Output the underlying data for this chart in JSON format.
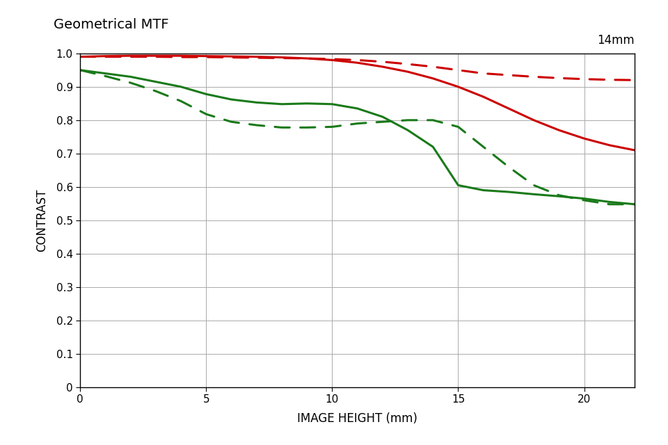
{
  "title": "Geometrical MTF",
  "focal_length_label": "14mm",
  "xlabel": "IMAGE HEIGHT (mm)",
  "ylabel": "CONTRAST",
  "xlim": [
    0,
    22
  ],
  "ylim": [
    0,
    1.0
  ],
  "xticks": [
    0,
    5,
    10,
    15,
    20
  ],
  "yticks": [
    0,
    0.1,
    0.2,
    0.3,
    0.4,
    0.5,
    0.6,
    0.7,
    0.8,
    0.9,
    1
  ],
  "background_color": "#ffffff",
  "curves": [
    {
      "name": "red_solid",
      "color": "#cc0000",
      "linestyle": "solid",
      "linewidth": 2.2,
      "x": [
        0,
        1,
        2,
        3,
        4,
        5,
        6,
        7,
        8,
        9,
        10,
        11,
        12,
        13,
        14,
        15,
        16,
        17,
        18,
        19,
        20,
        21,
        22
      ],
      "y": [
        0.99,
        0.992,
        0.993,
        0.993,
        0.993,
        0.992,
        0.991,
        0.99,
        0.988,
        0.985,
        0.98,
        0.972,
        0.96,
        0.945,
        0.925,
        0.9,
        0.87,
        0.835,
        0.8,
        0.77,
        0.745,
        0.725,
        0.71
      ]
    },
    {
      "name": "red_dashed",
      "color": "#cc0000",
      "linestyle": "dashed",
      "linewidth": 2.2,
      "x": [
        0,
        1,
        2,
        3,
        4,
        5,
        6,
        7,
        8,
        9,
        10,
        11,
        12,
        13,
        14,
        15,
        16,
        17,
        18,
        19,
        20,
        21,
        22
      ],
      "y": [
        0.99,
        0.99,
        0.99,
        0.99,
        0.989,
        0.989,
        0.988,
        0.987,
        0.986,
        0.985,
        0.983,
        0.98,
        0.975,
        0.968,
        0.96,
        0.95,
        0.94,
        0.935,
        0.93,
        0.926,
        0.923,
        0.921,
        0.92
      ]
    },
    {
      "name": "green_solid",
      "color": "#1a7a1a",
      "linestyle": "solid",
      "linewidth": 2.2,
      "x": [
        0,
        1,
        2,
        3,
        4,
        5,
        6,
        7,
        8,
        9,
        10,
        11,
        12,
        13,
        14,
        15,
        16,
        17,
        18,
        19,
        20,
        21,
        22
      ],
      "y": [
        0.95,
        0.94,
        0.93,
        0.915,
        0.9,
        0.878,
        0.862,
        0.853,
        0.848,
        0.85,
        0.848,
        0.835,
        0.81,
        0.77,
        0.72,
        0.605,
        0.59,
        0.585,
        0.578,
        0.572,
        0.565,
        0.555,
        0.548
      ]
    },
    {
      "name": "green_dashed",
      "color": "#1a7a1a",
      "linestyle": "dashed",
      "linewidth": 2.2,
      "x": [
        0,
        1,
        2,
        3,
        4,
        5,
        6,
        7,
        8,
        9,
        10,
        11,
        12,
        13,
        14,
        15,
        16,
        17,
        18,
        19,
        20,
        21,
        22
      ],
      "y": [
        0.95,
        0.932,
        0.912,
        0.887,
        0.857,
        0.818,
        0.795,
        0.785,
        0.778,
        0.778,
        0.78,
        0.79,
        0.795,
        0.8,
        0.8,
        0.78,
        0.72,
        0.66,
        0.605,
        0.575,
        0.56,
        0.548,
        0.548
      ]
    }
  ]
}
